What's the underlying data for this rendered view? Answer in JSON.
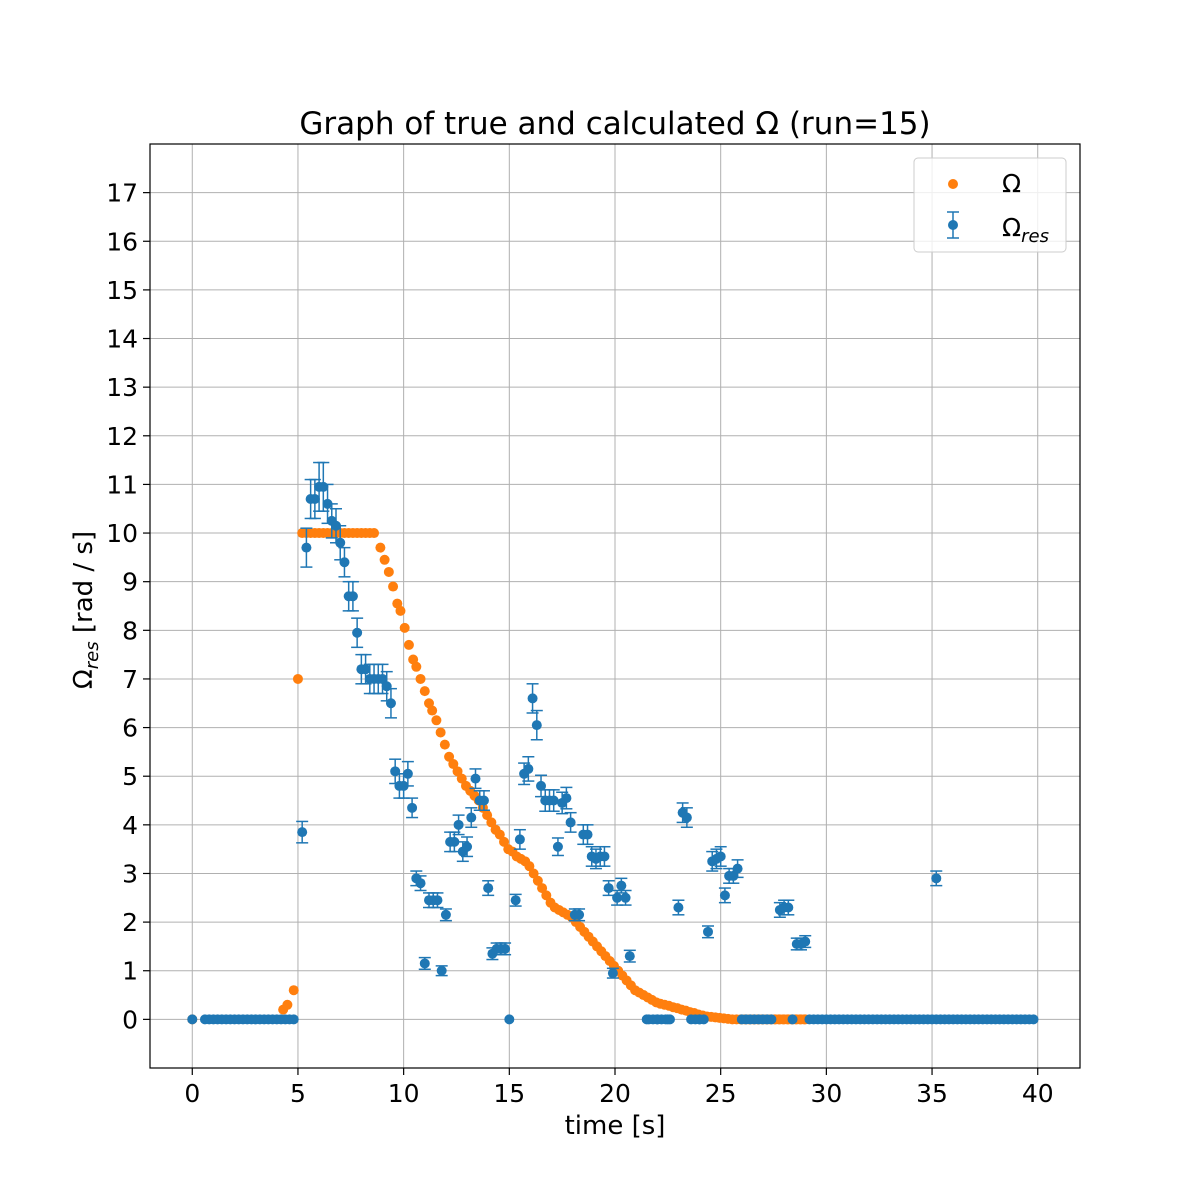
{
  "chart_data": {
    "type": "scatter",
    "title": "Graph of true and calculated Ω (run=15)",
    "xlabel": "time [s]",
    "ylabel": {
      "base": "Ω",
      "sub": "res",
      "unit": " [rad / s]"
    },
    "xlim": [
      -2,
      42
    ],
    "ylim": [
      -1,
      18
    ],
    "xticks": [
      0,
      5,
      10,
      15,
      20,
      25,
      30,
      35,
      40
    ],
    "yticks": [
      0,
      1,
      2,
      3,
      4,
      5,
      6,
      7,
      8,
      9,
      10,
      11,
      12,
      13,
      14,
      15,
      16,
      17
    ],
    "grid": true,
    "legend_position": "upper right",
    "colors": {
      "true": "#ff7f0e",
      "res": "#1f77b4",
      "grid": "#b0b0b0"
    },
    "series": [
      {
        "name": "Ω",
        "kind": "true",
        "points": [
          [
            0,
            0
          ],
          [
            4.3,
            0.2
          ],
          [
            4.5,
            0.3
          ],
          [
            4.8,
            0.6
          ],
          [
            5.0,
            7.0
          ],
          [
            5.2,
            10
          ],
          [
            5.4,
            10
          ],
          [
            5.6,
            10
          ],
          [
            5.8,
            10
          ],
          [
            6.0,
            10
          ],
          [
            6.2,
            10
          ],
          [
            6.4,
            10
          ],
          [
            6.6,
            10
          ],
          [
            6.8,
            10
          ],
          [
            7.0,
            10
          ],
          [
            7.2,
            10
          ],
          [
            7.4,
            10
          ],
          [
            7.6,
            10
          ],
          [
            7.8,
            10
          ],
          [
            8.0,
            10
          ],
          [
            8.2,
            10
          ],
          [
            8.4,
            10
          ],
          [
            8.6,
            10
          ],
          [
            8.9,
            9.7
          ],
          [
            9.1,
            9.45
          ],
          [
            9.3,
            9.2
          ],
          [
            9.5,
            8.9
          ],
          [
            9.7,
            8.55
          ],
          [
            9.85,
            8.4
          ],
          [
            10.05,
            8.05
          ],
          [
            10.25,
            7.7
          ],
          [
            10.45,
            7.4
          ],
          [
            10.6,
            7.25
          ],
          [
            10.8,
            7.0
          ],
          [
            11.0,
            6.75
          ],
          [
            11.2,
            6.5
          ],
          [
            11.35,
            6.35
          ],
          [
            11.55,
            6.15
          ],
          [
            11.75,
            5.9
          ],
          [
            11.95,
            5.65
          ],
          [
            12.15,
            5.4
          ],
          [
            12.35,
            5.25
          ],
          [
            12.55,
            5.1
          ],
          [
            12.75,
            4.95
          ],
          [
            12.95,
            4.8
          ],
          [
            13.15,
            4.7
          ],
          [
            13.35,
            4.6
          ],
          [
            13.55,
            4.5
          ],
          [
            13.75,
            4.35
          ],
          [
            13.95,
            4.2
          ],
          [
            14.15,
            4.05
          ],
          [
            14.35,
            3.9
          ],
          [
            14.55,
            3.8
          ],
          [
            14.75,
            3.65
          ],
          [
            14.95,
            3.5
          ],
          [
            15.15,
            3.45
          ],
          [
            15.35,
            3.35
          ],
          [
            15.55,
            3.3
          ],
          [
            15.75,
            3.25
          ],
          [
            15.95,
            3.15
          ],
          [
            16.15,
            3.0
          ],
          [
            16.35,
            2.85
          ],
          [
            16.55,
            2.7
          ],
          [
            16.75,
            2.55
          ],
          [
            16.95,
            2.4
          ],
          [
            17.15,
            2.3
          ],
          [
            17.35,
            2.25
          ],
          [
            17.55,
            2.2
          ],
          [
            17.75,
            2.15
          ],
          [
            17.95,
            2.1
          ],
          [
            18.15,
            2.0
          ],
          [
            18.35,
            1.9
          ],
          [
            18.55,
            1.8
          ],
          [
            18.75,
            1.7
          ],
          [
            18.95,
            1.6
          ],
          [
            19.15,
            1.5
          ],
          [
            19.35,
            1.4
          ],
          [
            19.55,
            1.3
          ],
          [
            19.75,
            1.2
          ],
          [
            19.95,
            1.1
          ],
          [
            20.15,
            1.0
          ],
          [
            20.35,
            0.9
          ],
          [
            20.55,
            0.8
          ],
          [
            20.75,
            0.7
          ],
          [
            20.95,
            0.6
          ],
          [
            21.15,
            0.55
          ],
          [
            21.35,
            0.5
          ],
          [
            21.55,
            0.45
          ],
          [
            21.75,
            0.4
          ],
          [
            21.95,
            0.35
          ],
          [
            22.15,
            0.32
          ],
          [
            22.35,
            0.3
          ],
          [
            22.55,
            0.28
          ],
          [
            22.75,
            0.25
          ],
          [
            22.95,
            0.23
          ],
          [
            23.15,
            0.2
          ],
          [
            23.35,
            0.18
          ],
          [
            23.55,
            0.15
          ],
          [
            23.75,
            0.13
          ],
          [
            23.95,
            0.1
          ],
          [
            24.15,
            0.08
          ],
          [
            24.35,
            0.06
          ],
          [
            24.55,
            0.05
          ],
          [
            24.75,
            0.04
          ],
          [
            24.95,
            0.03
          ],
          [
            25.15,
            0.02
          ],
          [
            25.35,
            0.01
          ],
          [
            25.55,
            0.0
          ],
          [
            25.75,
            0.0
          ],
          [
            25.95,
            0.0
          ],
          [
            26.15,
            0.0
          ],
          [
            26.35,
            0.0
          ],
          [
            26.55,
            0.0
          ],
          [
            26.75,
            0.0
          ],
          [
            26.95,
            0.0
          ],
          [
            27.15,
            0.0
          ],
          [
            27.35,
            0.0
          ],
          [
            27.55,
            0.0
          ],
          [
            27.75,
            0.0
          ],
          [
            27.95,
            0.0
          ],
          [
            28.15,
            0.0
          ],
          [
            28.35,
            0.0
          ],
          [
            28.55,
            0.0
          ],
          [
            28.75,
            0.0
          ],
          [
            28.95,
            0.0
          ]
        ]
      },
      {
        "name": "res",
        "kind": "res",
        "points": [
          [
            5.2,
            3.85,
            0.22
          ],
          [
            5.4,
            9.7,
            0.4
          ],
          [
            5.6,
            10.7,
            0.4
          ],
          [
            5.8,
            10.7,
            0.4
          ],
          [
            6.0,
            10.95,
            0.5
          ],
          [
            6.2,
            10.95,
            0.5
          ],
          [
            6.4,
            10.6,
            0.4
          ],
          [
            6.6,
            10.25,
            0.35
          ],
          [
            6.8,
            10.15,
            0.35
          ],
          [
            7.0,
            9.8,
            0.35
          ],
          [
            7.2,
            9.4,
            0.3
          ],
          [
            7.4,
            8.7,
            0.3
          ],
          [
            7.6,
            8.7,
            0.3
          ],
          [
            7.8,
            7.95,
            0.3
          ],
          [
            8.0,
            7.2,
            0.3
          ],
          [
            8.2,
            7.2,
            0.3
          ],
          [
            8.4,
            7.0,
            0.3
          ],
          [
            8.6,
            7.0,
            0.3
          ],
          [
            8.8,
            7.0,
            0.3
          ],
          [
            9.0,
            7.0,
            0.3
          ],
          [
            9.2,
            6.85,
            0.3
          ],
          [
            9.4,
            6.5,
            0.3
          ],
          [
            9.6,
            5.1,
            0.25
          ],
          [
            9.8,
            4.8,
            0.25
          ],
          [
            10.0,
            4.8,
            0.25
          ],
          [
            10.2,
            5.05,
            0.25
          ],
          [
            10.4,
            4.35,
            0.2
          ],
          [
            10.6,
            2.9,
            0.15
          ],
          [
            10.8,
            2.8,
            0.15
          ],
          [
            11.0,
            1.15,
            0.12
          ],
          [
            11.2,
            2.45,
            0.15
          ],
          [
            11.4,
            2.45,
            0.15
          ],
          [
            11.6,
            2.45,
            0.15
          ],
          [
            11.8,
            1.0,
            0.1
          ],
          [
            12.0,
            2.15,
            0.12
          ],
          [
            12.2,
            3.65,
            0.2
          ],
          [
            12.4,
            3.65,
            0.2
          ],
          [
            12.6,
            4.0,
            0.2
          ],
          [
            12.8,
            3.45,
            0.2
          ],
          [
            13.0,
            3.55,
            0.2
          ],
          [
            13.2,
            4.15,
            0.2
          ],
          [
            13.4,
            4.95,
            0.2
          ],
          [
            13.6,
            4.5,
            0.2
          ],
          [
            13.8,
            4.5,
            0.2
          ],
          [
            14.0,
            2.7,
            0.15
          ],
          [
            14.2,
            1.35,
            0.12
          ],
          [
            14.4,
            1.45,
            0.12
          ],
          [
            14.6,
            1.45,
            0.12
          ],
          [
            14.8,
            1.45,
            0.12
          ],
          [
            15.0,
            0.0,
            0.0
          ],
          [
            15.3,
            2.45,
            0.12
          ],
          [
            15.5,
            3.7,
            0.2
          ],
          [
            15.7,
            5.05,
            0.22
          ],
          [
            15.9,
            5.15,
            0.25
          ],
          [
            16.1,
            6.6,
            0.3
          ],
          [
            16.3,
            6.05,
            0.3
          ],
          [
            16.5,
            4.8,
            0.22
          ],
          [
            16.7,
            4.5,
            0.22
          ],
          [
            16.9,
            4.5,
            0.22
          ],
          [
            17.1,
            4.5,
            0.22
          ],
          [
            17.3,
            3.55,
            0.18
          ],
          [
            17.5,
            4.45,
            0.22
          ],
          [
            17.7,
            4.55,
            0.22
          ],
          [
            17.9,
            4.05,
            0.2
          ],
          [
            18.1,
            2.15,
            0.12
          ],
          [
            18.3,
            2.15,
            0.12
          ],
          [
            18.5,
            3.8,
            0.2
          ],
          [
            18.7,
            3.8,
            0.2
          ],
          [
            18.9,
            3.35,
            0.2
          ],
          [
            19.1,
            3.3,
            0.2
          ],
          [
            19.3,
            3.35,
            0.2
          ],
          [
            19.5,
            3.35,
            0.2
          ],
          [
            19.7,
            2.7,
            0.15
          ],
          [
            19.9,
            0.95,
            0.1
          ],
          [
            20.1,
            2.5,
            0.15
          ],
          [
            20.3,
            2.75,
            0.15
          ],
          [
            20.5,
            2.5,
            0.15
          ],
          [
            20.7,
            1.3,
            0.12
          ],
          [
            21.5,
            0.0,
            0.0
          ],
          [
            22.0,
            0.0,
            0.0
          ],
          [
            22.5,
            0.0,
            0.0
          ],
          [
            23.0,
            2.3,
            0.15
          ],
          [
            23.2,
            4.25,
            0.2
          ],
          [
            23.4,
            4.15,
            0.2
          ],
          [
            24.0,
            0.0,
            0.0
          ],
          [
            24.4,
            1.8,
            0.12
          ],
          [
            24.6,
            3.25,
            0.2
          ],
          [
            24.8,
            3.3,
            0.2
          ],
          [
            25.0,
            3.35,
            0.2
          ],
          [
            25.2,
            2.55,
            0.15
          ],
          [
            25.4,
            2.95,
            0.15
          ],
          [
            25.6,
            2.95,
            0.15
          ],
          [
            25.8,
            3.1,
            0.18
          ],
          [
            27.8,
            2.25,
            0.15
          ],
          [
            28.0,
            2.3,
            0.15
          ],
          [
            28.2,
            2.3,
            0.15
          ],
          [
            28.6,
            1.55,
            0.12
          ],
          [
            28.8,
            1.55,
            0.12
          ],
          [
            29.0,
            1.6,
            0.12
          ],
          [
            35.2,
            2.9,
            0.15
          ]
        ]
      }
    ]
  }
}
